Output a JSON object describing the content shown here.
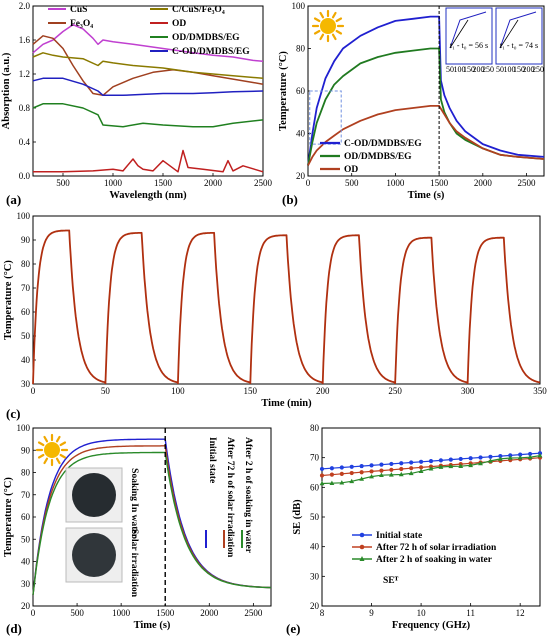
{
  "chart_data": [
    {
      "panel": "(a)",
      "type": "line",
      "xlabel": "Wavelength (nm)",
      "ylabel": "Absorption (a.u.)",
      "xlim": [
        200,
        2500
      ],
      "ylim": [
        0,
        2.0
      ],
      "xticks": [
        500,
        1000,
        1500,
        2000,
        2500
      ],
      "yticks": [
        0.0,
        0.4,
        0.8,
        1.2,
        1.6,
        2.0
      ],
      "series": [
        {
          "name": "CuS",
          "color": "#c040d0",
          "x": [
            200,
            300,
            400,
            500,
            600,
            700,
            800,
            850,
            900,
            1000,
            1200,
            1500,
            1800,
            2000,
            2200,
            2400,
            2500
          ],
          "y": [
            1.45,
            1.55,
            1.6,
            1.7,
            1.78,
            1.73,
            1.62,
            1.55,
            1.6,
            1.58,
            1.55,
            1.5,
            1.45,
            1.42,
            1.4,
            1.36,
            1.35
          ]
        },
        {
          "name": "Fe₃O₄",
          "color": "#a04020",
          "x": [
            200,
            300,
            400,
            500,
            600,
            700,
            800,
            900,
            1000,
            1200,
            1400,
            1600,
            1800,
            2000,
            2200,
            2400,
            2500
          ],
          "y": [
            1.55,
            1.65,
            1.62,
            1.5,
            1.3,
            1.12,
            0.97,
            0.95,
            1.05,
            1.15,
            1.22,
            1.25,
            1.22,
            1.18,
            1.14,
            1.1,
            1.08
          ]
        },
        {
          "name": "C/CuS/Fe₃O₄",
          "color": "#8a7a00",
          "x": [
            200,
            300,
            400,
            500,
            700,
            850,
            900,
            1000,
            1200,
            1500,
            1800,
            2000,
            2200,
            2500
          ],
          "y": [
            1.4,
            1.45,
            1.42,
            1.4,
            1.38,
            1.3,
            1.35,
            1.33,
            1.3,
            1.27,
            1.22,
            1.2,
            1.18,
            1.15
          ]
        },
        {
          "name": "OD",
          "color": "#c02020",
          "x": [
            200,
            500,
            800,
            1000,
            1100,
            1200,
            1250,
            1300,
            1400,
            1500,
            1650,
            1700,
            1750,
            1900,
            2100,
            2150,
            2200,
            2300,
            2500
          ],
          "y": [
            0.05,
            0.05,
            0.06,
            0.08,
            0.06,
            0.2,
            0.12,
            0.08,
            0.06,
            0.18,
            0.05,
            0.3,
            0.1,
            0.08,
            0.05,
            0.18,
            0.06,
            0.12,
            0.05
          ]
        },
        {
          "name": "OD/DMDBS/EG",
          "color": "#208020",
          "x": [
            200,
            300,
            500,
            700,
            850,
            900,
            1100,
            1300,
            1500,
            1800,
            2000,
            2200,
            2500
          ],
          "y": [
            0.8,
            0.85,
            0.85,
            0.8,
            0.72,
            0.6,
            0.58,
            0.62,
            0.6,
            0.58,
            0.58,
            0.62,
            0.66
          ]
        },
        {
          "name": "C-OD/DMDBS/EG",
          "color": "#2020c0",
          "x": [
            200,
            300,
            500,
            700,
            850,
            900,
            1100,
            1300,
            1500,
            1800,
            2000,
            2200,
            2500
          ],
          "y": [
            1.12,
            1.15,
            1.15,
            1.08,
            1.0,
            0.95,
            0.95,
            0.96,
            0.97,
            0.97,
            0.98,
            0.99,
            1.0
          ]
        }
      ]
    },
    {
      "panel": "(b)",
      "type": "line",
      "xlabel": "Time (s)",
      "ylabel": "Temperature (°C)",
      "xlim": [
        0,
        2700
      ],
      "ylim": [
        20,
        100
      ],
      "xticks": [
        0,
        500,
        1000,
        1500,
        2000,
        2500
      ],
      "yticks": [
        20,
        40,
        60,
        80,
        100
      ],
      "series": [
        {
          "name": "C-OD/DMDBS/EG",
          "color": "#2020d0",
          "x": [
            0,
            50,
            100,
            200,
            300,
            400,
            600,
            800,
            1000,
            1200,
            1400,
            1500,
            1520,
            1560,
            1620,
            1700,
            1800,
            2000,
            2200,
            2400,
            2700
          ],
          "y": [
            25,
            40,
            52,
            66,
            74,
            80,
            86,
            90,
            93,
            94,
            95,
            95,
            65,
            58,
            52,
            46,
            41,
            35,
            32,
            30,
            29
          ]
        },
        {
          "name": "OD/DMDBS/EG",
          "color": "#207a20",
          "x": [
            0,
            50,
            100,
            200,
            300,
            400,
            600,
            800,
            1000,
            1200,
            1400,
            1500,
            1520,
            1560,
            1620,
            1700,
            1800,
            2000,
            2200,
            2400,
            2700
          ],
          "y": [
            25,
            36,
            45,
            56,
            63,
            67,
            73,
            76,
            78,
            79,
            80,
            80,
            56,
            50,
            45,
            40,
            37,
            33,
            30,
            29,
            28
          ]
        },
        {
          "name": "OD",
          "color": "#b04020",
          "x": [
            0,
            50,
            100,
            200,
            300,
            400,
            600,
            800,
            1000,
            1200,
            1400,
            1500,
            1560,
            1620,
            1700,
            1800,
            2000,
            2200,
            2400,
            2700
          ],
          "y": [
            25,
            29,
            32,
            36,
            39,
            42,
            46,
            49,
            51,
            52,
            53,
            53,
            49,
            45,
            41,
            38,
            33,
            30,
            29,
            28
          ]
        }
      ],
      "insets": [
        {
          "label": "t₁ - t₀ = 56 s",
          "xticks": [
            50,
            100,
            150,
            200,
            250
          ]
        },
        {
          "label": "t₁ - t₀ = 74 s",
          "xticks": [
            50,
            100,
            150,
            200,
            250
          ]
        }
      ]
    },
    {
      "panel": "(c)",
      "type": "line",
      "xlabel": "Time (min)",
      "ylabel": "Temperature (°C)",
      "xlim": [
        0,
        350
      ],
      "ylim": [
        30,
        100
      ],
      "xticks": [
        0,
        50,
        100,
        150,
        200,
        250,
        300,
        350
      ],
      "yticks": [
        30,
        40,
        50,
        60,
        70,
        80,
        90,
        100
      ],
      "cycles": 7,
      "cycle_period_min": 50,
      "heating_min": 25,
      "peaks": [
        94,
        93,
        93,
        92,
        92,
        91,
        91
      ],
      "base": 30,
      "color": "#b03010"
    },
    {
      "panel": "(d)",
      "type": "line",
      "xlabel": "Time (s)",
      "ylabel": "Temperature (°C)",
      "xlim": [
        0,
        2700
      ],
      "ylim": [
        20,
        100
      ],
      "xticks": [
        0,
        500,
        1000,
        1500,
        2000,
        2500
      ],
      "yticks": [
        20,
        30,
        40,
        50,
        60,
        70,
        80,
        90,
        100
      ],
      "legend": [
        "Initial state",
        "After 72 h of  solar irradiation",
        "After 2 h of soaking in water"
      ],
      "photo_labels": {
        "soaking": "Soaking In water",
        "solar": "Solar irradiation"
      },
      "series": [
        {
          "name": "Initial state",
          "color": "#2020d0",
          "peak": 95
        },
        {
          "name": "After 72 h of  solar irradiation",
          "color": "#b04020",
          "peak": 92
        },
        {
          "name": "After 2 h of soaking in water",
          "color": "#2a8a2a",
          "peak": 89
        }
      ]
    },
    {
      "panel": "(e)",
      "type": "line",
      "xlabel": "Frequency (GHz)",
      "ylabel": "SE (dB)",
      "xlim": [
        8,
        12.4
      ],
      "ylim": [
        20,
        80
      ],
      "xticks": [
        8,
        9,
        10,
        11,
        12
      ],
      "yticks": [
        20,
        30,
        40,
        50,
        60,
        70,
        80
      ],
      "annotation": "SEᵀ",
      "series": [
        {
          "name": "Initial state",
          "color": "#2040e0",
          "marker": "circle",
          "y0": 66.2,
          "y1": 71.5
        },
        {
          "name": "After 72 h of  solar irradiation",
          "color": "#c04020",
          "marker": "circle",
          "y0": 64.0,
          "y1": 70.0
        },
        {
          "name": "After 2 h of soaking in water",
          "color": "#2a8a2a",
          "marker": "triangle",
          "y0": 61.0,
          "y1": 71.0
        }
      ]
    }
  ]
}
